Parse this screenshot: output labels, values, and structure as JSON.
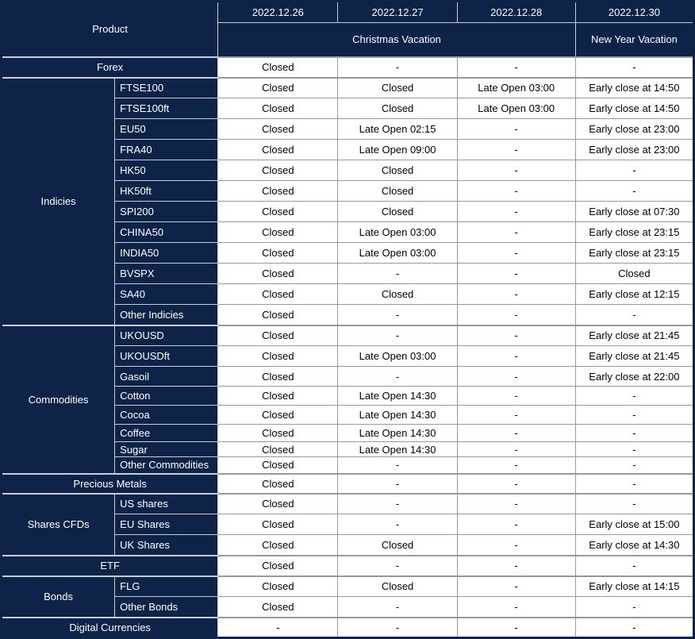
{
  "table": {
    "product_header": "Product",
    "date_columns": [
      "2022.12.26",
      "2022.12.27",
      "2022.12.28",
      "2022.12.30"
    ],
    "vacation_banners": [
      {
        "label": "Christmas Vacation",
        "colspan": 3
      },
      {
        "label": "New Year Vacation",
        "colspan": 1
      }
    ],
    "sections": [
      {
        "group": "Forex",
        "merged": true,
        "rows": [
          {
            "product": "Forex",
            "values": [
              "Closed",
              "-",
              "-",
              "-"
            ]
          }
        ]
      },
      {
        "group": "Indicies",
        "merged": false,
        "rows": [
          {
            "product": "FTSE100",
            "values": [
              "Closed",
              "Closed",
              "Late Open 03:00",
              "Early close at 14:50"
            ]
          },
          {
            "product": "FTSE100ft",
            "values": [
              "Closed",
              "Closed",
              "Late Open 03:00",
              "Early close at 14:50"
            ]
          },
          {
            "product": "EU50",
            "values": [
              "Closed",
              "Late Open 02:15",
              "-",
              "Early close at 23:00"
            ]
          },
          {
            "product": "FRA40",
            "values": [
              "Closed",
              "Late Open 09:00",
              "-",
              "Early close at 23:00"
            ]
          },
          {
            "product": "HK50",
            "values": [
              "Closed",
              "Closed",
              "-",
              "-"
            ]
          },
          {
            "product": "HK50ft",
            "values": [
              "Closed",
              "Closed",
              "-",
              "-"
            ]
          },
          {
            "product": "SPI200",
            "values": [
              "Closed",
              "Closed",
              "-",
              "Early close at 07:30"
            ]
          },
          {
            "product": "CHINA50",
            "values": [
              "Closed",
              "Late Open 03:00",
              "-",
              "Early close at 23:15"
            ]
          },
          {
            "product": "INDIA50",
            "values": [
              "Closed",
              "Late Open 03:00",
              "-",
              "Early close at 23:15"
            ]
          },
          {
            "product": "BVSPX",
            "values": [
              "Closed",
              "-",
              "-",
              "Closed"
            ]
          },
          {
            "product": "SA40",
            "values": [
              "Closed",
              "Closed",
              "-",
              "Early close at 12:15"
            ]
          },
          {
            "product": "Other Indicies",
            "values": [
              "Closed",
              "-",
              "-",
              "-"
            ]
          }
        ]
      },
      {
        "group": "Commodities",
        "merged": false,
        "rows": [
          {
            "product": "UKOUSD",
            "values": [
              "Closed",
              "-",
              "-",
              "Early close at 21:45"
            ]
          },
          {
            "product": "UKOUSDft",
            "values": [
              "Closed",
              "Late Open 03:00",
              "-",
              "Early close at 21:45"
            ]
          },
          {
            "product": "Gasoil",
            "values": [
              "Closed",
              "-",
              "-",
              "Early close at 22:00"
            ]
          },
          {
            "product": "Cotton",
            "values": [
              "Closed",
              "Late Open 14:30",
              "-",
              "-"
            ]
          },
          {
            "product": "Cocoa",
            "values": [
              "Closed",
              "Late Open 14:30",
              "-",
              "-"
            ]
          },
          {
            "product": "Coffee",
            "values": [
              "Closed",
              "Late Open 14:30",
              "-",
              "-"
            ]
          },
          {
            "product": "Sugar",
            "values": [
              "Closed",
              "Late Open 14:30",
              "-",
              "-"
            ]
          },
          {
            "product": "Other Commodities",
            "values": [
              "Closed",
              "-",
              "-",
              "-"
            ]
          }
        ]
      },
      {
        "group": "Precious Metals",
        "merged": true,
        "rows": [
          {
            "product": "Precious Metals",
            "values": [
              "Closed",
              "-",
              "-",
              "-"
            ]
          }
        ]
      },
      {
        "group": "Shares CFDs",
        "merged": false,
        "rows": [
          {
            "product": "US shares",
            "values": [
              "Closed",
              "-",
              "-",
              "-"
            ]
          },
          {
            "product": "EU Shares",
            "values": [
              "Closed",
              "-",
              "-",
              "Early close at 15:00"
            ]
          },
          {
            "product": "UK Shares",
            "values": [
              "Closed",
              "Closed",
              "-",
              "Early close at 14:30"
            ]
          }
        ]
      },
      {
        "group": "ETF",
        "merged": true,
        "rows": [
          {
            "product": "ETF",
            "values": [
              "Closed",
              "-",
              "-",
              "-"
            ]
          }
        ]
      },
      {
        "group": "Bonds",
        "merged": false,
        "rows": [
          {
            "product": "FLG",
            "values": [
              "Closed",
              "Closed",
              "-",
              "Early close at 14:15"
            ]
          },
          {
            "product": "Other Bonds",
            "values": [
              "Closed",
              "-",
              "-",
              "-"
            ]
          }
        ]
      },
      {
        "group": "Digital Currencies",
        "merged": true,
        "rows": [
          {
            "product": "Digital Currencies",
            "values": [
              "-",
              "-",
              "-",
              "-"
            ]
          }
        ]
      }
    ],
    "colors": {
      "navy": "#0d2347",
      "navy_border": "#c9ced6",
      "cell_border": "#999999"
    }
  }
}
